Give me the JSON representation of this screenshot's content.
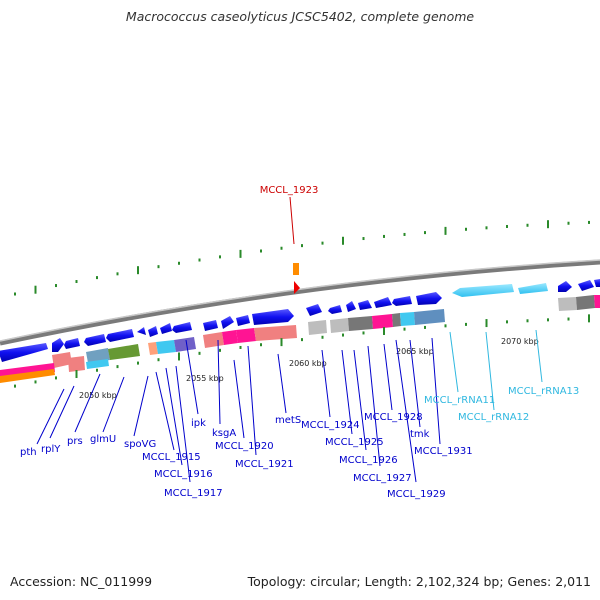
{
  "title": "Macrococcus caseolyticus JCSC5402, complete genome",
  "footer": {
    "accession": "Accession: NC_011999",
    "summary": "Topology: circular; Length: 2,102,324 bp; Genes: 2,011"
  },
  "colors": {
    "gene_forward": "#0000ee",
    "gene_reverse": "#0000ee",
    "rrna": "#40c8f0",
    "highlight": "#cc0000",
    "backbone": "#888888",
    "tick": "#2a8a2a",
    "label_gene": "#0000cc",
    "label_rrna": "#30b8e0",
    "label_highlight": "#cc0000"
  },
  "highlight": {
    "label": "MCCL_1923",
    "marker_icon": "red-triangle-icon"
  },
  "scale_ticks": [
    "2050 kbp",
    "2055 kbp",
    "2060 kbp",
    "2065 kbp",
    "2070 kbp"
  ],
  "gene_labels": [
    "pth",
    "rplY",
    "prs",
    "glmU",
    "spoVG",
    "MCCL_1915",
    "MCCL_1916",
    "MCCL_1917",
    "ipk",
    "ksgA",
    "MCCL_1920",
    "MCCL_1921",
    "metS",
    "MCCL_1924",
    "MCCL_1925",
    "MCCL_1926",
    "MCCL_1927",
    "MCCL_1928",
    "tmk",
    "MCCL_1929",
    "MCCL_1931"
  ],
  "rrna_labels": [
    "MCCL_rRNA11",
    "MCCL_rRNA12",
    "MCCL_rRNA13"
  ]
}
